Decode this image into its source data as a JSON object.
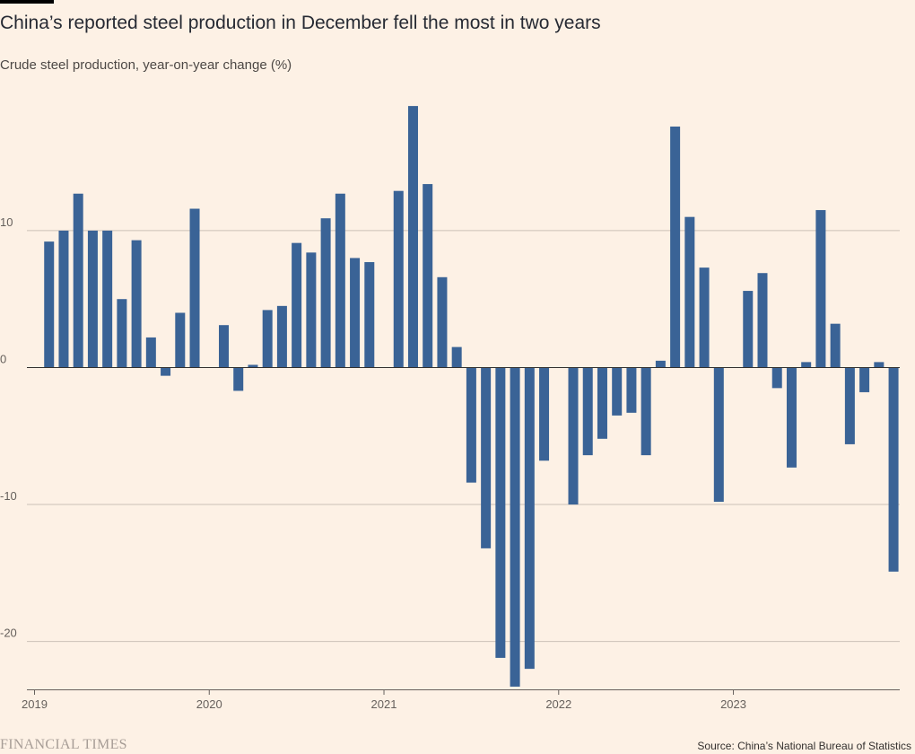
{
  "title": "China’s reported steel production in December fell the most in two years",
  "subtitle": "Crude steel production, year-on-year change (%)",
  "footer": {
    "brand": "FINANCIAL TIMES",
    "source": "Source: China’s National Bureau of Statistics"
  },
  "colors": {
    "bar": "#3a6396",
    "background": "#fdf1e5",
    "grid": "#ccc1b7",
    "zero_line": "#33302e"
  },
  "chart_data": {
    "type": "bar",
    "title": "China’s reported steel production in December fell the most in two years",
    "ylabel": "Crude steel production, year-on-year change (%)",
    "xlabel": "",
    "ylim": [
      -23.5,
      19.5
    ],
    "yticks": [
      10,
      0,
      -10,
      -20
    ],
    "ytick_labels": [
      "10",
      "0",
      "-10",
      "-20"
    ],
    "xticks": [
      "2019-01",
      "2020-01",
      "2021-01",
      "2022-01",
      "2023-01"
    ],
    "xtick_labels": [
      "2019",
      "2020",
      "2021",
      "2022",
      "2023"
    ],
    "grid": true,
    "legend": "none",
    "categories": [
      "2019-02",
      "2019-03",
      "2019-04",
      "2019-05",
      "2019-06",
      "2019-07",
      "2019-08",
      "2019-09",
      "2019-10",
      "2019-11",
      "2019-12",
      "2020-02",
      "2020-03",
      "2020-04",
      "2020-05",
      "2020-06",
      "2020-07",
      "2020-08",
      "2020-09",
      "2020-10",
      "2020-11",
      "2020-12",
      "2021-02",
      "2021-03",
      "2021-04",
      "2021-05",
      "2021-06",
      "2021-07",
      "2021-08",
      "2021-09",
      "2021-10",
      "2021-11",
      "2021-12",
      "2022-02",
      "2022-03",
      "2022-04",
      "2022-05",
      "2022-06",
      "2022-07",
      "2022-08",
      "2022-09",
      "2022-10",
      "2022-11",
      "2022-12",
      "2023-02",
      "2023-03",
      "2023-04",
      "2023-05",
      "2023-06",
      "2023-07",
      "2023-08",
      "2023-09",
      "2023-10",
      "2023-11",
      "2023-12"
    ],
    "values": [
      9.2,
      10.0,
      12.7,
      10.0,
      10.0,
      5.0,
      9.3,
      2.2,
      -0.6,
      4.0,
      11.6,
      3.1,
      -1.7,
      0.2,
      4.2,
      4.5,
      9.1,
      8.4,
      10.9,
      12.7,
      8.0,
      7.7,
      12.9,
      19.1,
      13.4,
      6.6,
      1.5,
      -8.4,
      -13.2,
      -21.2,
      -23.3,
      -22.0,
      -6.8,
      -10.0,
      -6.4,
      -5.2,
      -3.5,
      -3.3,
      -6.4,
      0.5,
      17.6,
      11.0,
      7.3,
      -9.8,
      5.6,
      6.9,
      -1.5,
      -7.3,
      0.4,
      11.5,
      3.2,
      -5.6,
      -1.8,
      0.4,
      -14.9
    ]
  }
}
